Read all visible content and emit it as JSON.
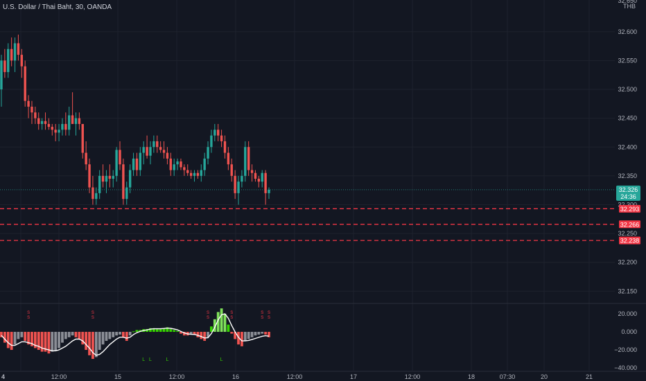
{
  "header": {
    "symbol_legend": "U.S. Dollar / Thai Baht, 30, OANDA",
    "currency_label": "THB"
  },
  "colors": {
    "background": "#131722",
    "grid": "#1e222d",
    "up": "#26a69a",
    "down": "#ef5350",
    "bright_green": "#36d400",
    "grey_hist": "#8b8e96",
    "dashed_level": "#f23645",
    "last_price_tag": "#26a69a",
    "signal_line": "#ffffff"
  },
  "price_axis": {
    "top_partial": "32.650",
    "ticks": [
      "32.600",
      "32.550",
      "32.500",
      "32.450",
      "32.400",
      "32.350",
      "32.300",
      "32.250",
      "32.200",
      "32.150"
    ]
  },
  "last_price": {
    "price": "32.326",
    "countdown": "24:36"
  },
  "levels": [
    "32.293",
    "32.266",
    "32.238"
  ],
  "time_axis": {
    "labels": [
      "4",
      "12:00",
      "15",
      "12:00",
      "16",
      "12:00",
      "17",
      "12:00",
      "18",
      "07:30",
      "20",
      "21"
    ]
  },
  "oscillator_axis": {
    "ticks": [
      "20.000",
      "0.000",
      "−20.000",
      "−40.000"
    ]
  },
  "chart_data": {
    "type": "candlestick",
    "ylim": [
      32.13,
      32.655
    ],
    "candles": [
      [
        32.5,
        32.56,
        32.47,
        32.55
      ],
      [
        32.55,
        32.57,
        32.52,
        32.53
      ],
      [
        32.53,
        32.58,
        32.52,
        32.57
      ],
      [
        32.57,
        32.59,
        32.54,
        32.55
      ],
      [
        32.55,
        32.59,
        32.53,
        32.58
      ],
      [
        32.58,
        32.595,
        32.55,
        32.56
      ],
      [
        32.56,
        32.57,
        32.52,
        32.54
      ],
      [
        32.54,
        32.55,
        32.47,
        32.48
      ],
      [
        32.48,
        32.49,
        32.45,
        32.47
      ],
      [
        32.47,
        32.48,
        32.44,
        32.46
      ],
      [
        32.46,
        32.47,
        32.44,
        32.45
      ],
      [
        32.45,
        32.46,
        32.43,
        32.44
      ],
      [
        32.44,
        32.45,
        32.43,
        32.445
      ],
      [
        32.445,
        32.46,
        32.43,
        32.44
      ],
      [
        32.44,
        32.45,
        32.43,
        32.435
      ],
      [
        32.435,
        32.44,
        32.42,
        32.43
      ],
      [
        32.43,
        32.44,
        32.41,
        32.425
      ],
      [
        32.425,
        32.44,
        32.41,
        32.43
      ],
      [
        32.43,
        32.45,
        32.42,
        32.44
      ],
      [
        32.44,
        32.46,
        32.42,
        32.43
      ],
      [
        32.43,
        32.47,
        32.42,
        32.455
      ],
      [
        32.455,
        32.495,
        32.44,
        32.44
      ],
      [
        32.44,
        32.46,
        32.42,
        32.45
      ],
      [
        32.45,
        32.46,
        32.43,
        32.44
      ],
      [
        32.44,
        32.44,
        32.38,
        32.39
      ],
      [
        32.39,
        32.41,
        32.36,
        32.37
      ],
      [
        32.37,
        32.38,
        32.32,
        32.33
      ],
      [
        32.33,
        32.35,
        32.3,
        32.31
      ],
      [
        32.31,
        32.33,
        32.3,
        32.32
      ],
      [
        32.32,
        32.36,
        32.31,
        32.35
      ],
      [
        32.35,
        32.37,
        32.33,
        32.34
      ],
      [
        32.34,
        32.36,
        32.32,
        32.35
      ],
      [
        32.35,
        32.37,
        32.33,
        32.345
      ],
      [
        32.345,
        32.36,
        32.33,
        32.35
      ],
      [
        32.35,
        32.4,
        32.34,
        32.395
      ],
      [
        32.395,
        32.41,
        32.36,
        32.37
      ],
      [
        32.37,
        32.38,
        32.3,
        32.31
      ],
      [
        32.31,
        32.34,
        32.3,
        32.33
      ],
      [
        32.33,
        32.37,
        32.32,
        32.36
      ],
      [
        32.36,
        32.39,
        32.35,
        32.38
      ],
      [
        32.38,
        32.39,
        32.35,
        32.36
      ],
      [
        32.36,
        32.4,
        32.35,
        32.39
      ],
      [
        32.39,
        32.41,
        32.37,
        32.4
      ],
      [
        32.4,
        32.42,
        32.38,
        32.385
      ],
      [
        32.385,
        32.41,
        32.37,
        32.4
      ],
      [
        32.4,
        32.42,
        32.39,
        32.41
      ],
      [
        32.41,
        32.42,
        32.39,
        32.4
      ],
      [
        32.4,
        32.41,
        32.39,
        32.395
      ],
      [
        32.395,
        32.41,
        32.38,
        32.39
      ],
      [
        32.39,
        32.4,
        32.37,
        32.38
      ],
      [
        32.38,
        32.39,
        32.35,
        32.36
      ],
      [
        32.36,
        32.38,
        32.35,
        32.37
      ],
      [
        32.37,
        32.38,
        32.36,
        32.375
      ],
      [
        32.375,
        32.38,
        32.36,
        32.365
      ],
      [
        32.365,
        32.37,
        32.35,
        32.36
      ],
      [
        32.36,
        32.37,
        32.35,
        32.355
      ],
      [
        32.355,
        32.36,
        32.345,
        32.35
      ],
      [
        32.35,
        32.36,
        32.34,
        32.355
      ],
      [
        32.355,
        32.36,
        32.345,
        32.35
      ],
      [
        32.35,
        32.37,
        32.34,
        32.36
      ],
      [
        32.36,
        32.39,
        32.35,
        32.38
      ],
      [
        32.38,
        32.41,
        32.37,
        32.4
      ],
      [
        32.4,
        32.43,
        32.39,
        32.42
      ],
      [
        32.42,
        32.44,
        32.41,
        32.43
      ],
      [
        32.43,
        32.44,
        32.41,
        32.42
      ],
      [
        32.42,
        32.43,
        32.4,
        32.41
      ],
      [
        32.41,
        32.42,
        32.38,
        32.39
      ],
      [
        32.39,
        32.4,
        32.36,
        32.37
      ],
      [
        32.37,
        32.38,
        32.34,
        32.35
      ],
      [
        32.35,
        32.36,
        32.31,
        32.32
      ],
      [
        32.32,
        32.35,
        32.3,
        32.34
      ],
      [
        32.34,
        32.36,
        32.33,
        32.35
      ],
      [
        32.35,
        32.41,
        32.34,
        32.4
      ],
      [
        32.4,
        32.41,
        32.35,
        32.36
      ],
      [
        32.36,
        32.37,
        32.34,
        32.355
      ],
      [
        32.355,
        32.36,
        32.34,
        32.345
      ],
      [
        32.345,
        32.35,
        32.33,
        32.34
      ],
      [
        32.34,
        32.36,
        32.33,
        32.355
      ],
      [
        32.355,
        32.36,
        32.3,
        32.32
      ],
      [
        32.32,
        32.33,
        32.31,
        32.326
      ]
    ],
    "oscillator": {
      "ylim": [
        -43,
        30
      ],
      "histogram": [
        -6,
        -12,
        -18,
        -20,
        -14,
        -8,
        -6,
        -10,
        -14,
        -16,
        -18,
        -20,
        -22,
        -22,
        -24,
        -22,
        -21,
        -18,
        -12,
        -8,
        -6,
        -4,
        -6,
        -8,
        -14,
        -20,
        -26,
        -30,
        -28,
        -20,
        -14,
        -10,
        -8,
        -6,
        -4,
        -3,
        -6,
        -10,
        -4,
        0.5,
        2,
        2,
        3,
        3,
        4,
        4,
        3,
        3,
        4,
        5,
        3,
        2,
        1,
        -2,
        -4,
        -4,
        -3,
        -3,
        -6,
        -8,
        -10,
        -6,
        6,
        14,
        22,
        26,
        20,
        8,
        -2,
        -8,
        -14,
        -16,
        -10,
        -8,
        -6,
        -4,
        -3,
        -2,
        -3,
        -6
      ],
      "signal": [
        -4,
        -8,
        -12,
        -15,
        -15,
        -13,
        -11,
        -11,
        -12,
        -13,
        -15,
        -16,
        -18,
        -19,
        -20,
        -21,
        -21,
        -20,
        -18,
        -16,
        -13,
        -10,
        -8,
        -8,
        -10,
        -14,
        -18,
        -23,
        -26,
        -25,
        -22,
        -18,
        -14,
        -11,
        -8,
        -6,
        -6,
        -7,
        -6,
        -3,
        -1,
        0.5,
        1.5,
        2.2,
        3,
        3.4,
        3.4,
        3.4,
        3.7,
        4.2,
        3.9,
        3.2,
        2.2,
        0.5,
        -1.2,
        -2.3,
        -2.7,
        -2.9,
        -3.9,
        -5.2,
        -6.8,
        -6.5,
        -2,
        5,
        13,
        19,
        20,
        15,
        7,
        0,
        -6,
        -10,
        -10,
        -9.5,
        -8.5,
        -7.3,
        -6.1,
        -4.9,
        -4.3,
        -4.8
      ],
      "markers_top": [
        [
          8,
          "S"
        ],
        [
          27,
          "S"
        ],
        [
          61,
          "S"
        ],
        [
          68,
          "S"
        ],
        [
          77,
          "S"
        ],
        [
          79,
          "S"
        ]
      ],
      "markers_bottom": [
        [
          42,
          "L"
        ],
        [
          44,
          "L"
        ],
        [
          49,
          "L"
        ],
        [
          65,
          "L"
        ]
      ]
    }
  }
}
